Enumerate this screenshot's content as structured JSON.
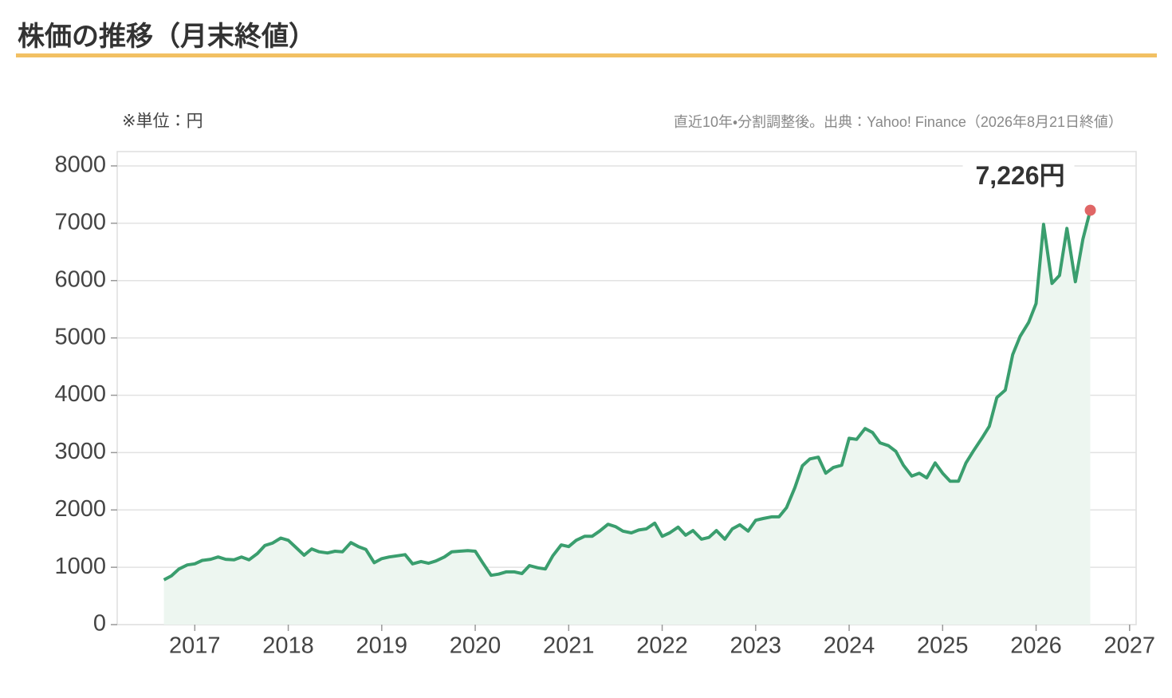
{
  "chart_data": {
    "type": "line",
    "title": "株価の推移（月末終値）",
    "unit_note": "※単位：円",
    "source": "直近10年・分割調整後。出典：Yahoo! Finance（2026年8月21日終値）",
    "annotation": "7,226円",
    "color": "#3a9e6e",
    "area_color": "#edf6f0",
    "marker_color": "#e06666",
    "grid": true,
    "xlim": [
      2016.17,
      2027.07
    ],
    "xticks": [
      2017,
      2018,
      2019,
      2020,
      2021,
      2022,
      2023,
      2024,
      2025,
      2026,
      2027
    ],
    "ylim": [
      0,
      8250
    ],
    "yticks": [
      0,
      1000,
      2000,
      3000,
      4000,
      5000,
      6000,
      7000,
      8000
    ],
    "x": [
      2016.67,
      2016.75,
      2016.83,
      2016.92,
      2017.0,
      2017.08,
      2017.17,
      2017.25,
      2017.33,
      2017.42,
      2017.5,
      2017.58,
      2017.67,
      2017.75,
      2017.83,
      2017.92,
      2018.0,
      2018.08,
      2018.17,
      2018.25,
      2018.33,
      2018.42,
      2018.5,
      2018.58,
      2018.67,
      2018.75,
      2018.83,
      2018.92,
      2019.0,
      2019.08,
      2019.17,
      2019.25,
      2019.33,
      2019.42,
      2019.5,
      2019.58,
      2019.67,
      2019.75,
      2019.83,
      2019.92,
      2020.0,
      2020.08,
      2020.17,
      2020.25,
      2020.33,
      2020.42,
      2020.5,
      2020.58,
      2020.67,
      2020.75,
      2020.83,
      2020.92,
      2021.0,
      2021.08,
      2021.17,
      2021.25,
      2021.33,
      2021.42,
      2021.5,
      2021.58,
      2021.67,
      2021.75,
      2021.83,
      2021.92,
      2022.0,
      2022.08,
      2022.17,
      2022.25,
      2022.33,
      2022.42,
      2022.5,
      2022.58,
      2022.67,
      2022.75,
      2022.83,
      2022.92,
      2023.0,
      2023.08,
      2023.17,
      2023.25,
      2023.33,
      2023.42,
      2023.5,
      2023.58,
      2023.67,
      2023.75,
      2023.83,
      2023.92,
      2024.0,
      2024.08,
      2024.17,
      2024.25,
      2024.33,
      2024.42,
      2024.5,
      2024.58,
      2024.67,
      2024.75,
      2024.83,
      2024.92,
      2025.0,
      2025.08,
      2025.17,
      2025.25,
      2025.33,
      2025.42,
      2025.5,
      2025.58,
      2025.67,
      2025.75,
      2025.83,
      2025.92,
      2026.0,
      2026.08,
      2026.17,
      2026.25,
      2026.33,
      2026.42,
      2026.5,
      2026.58
    ],
    "values": [
      780,
      850,
      970,
      1040,
      1060,
      1120,
      1140,
      1180,
      1140,
      1130,
      1180,
      1130,
      1240,
      1380,
      1420,
      1510,
      1470,
      1350,
      1210,
      1320,
      1270,
      1250,
      1280,
      1270,
      1430,
      1360,
      1310,
      1080,
      1150,
      1180,
      1200,
      1220,
      1060,
      1100,
      1070,
      1110,
      1180,
      1270,
      1280,
      1290,
      1280,
      1080,
      860,
      880,
      920,
      920,
      890,
      1030,
      990,
      970,
      1200,
      1390,
      1360,
      1470,
      1540,
      1540,
      1630,
      1750,
      1710,
      1630,
      1600,
      1650,
      1670,
      1770,
      1540,
      1600,
      1700,
      1560,
      1640,
      1490,
      1520,
      1640,
      1490,
      1670,
      1740,
      1630,
      1820,
      1850,
      1880,
      1880,
      2040,
      2390,
      2770,
      2890,
      2920,
      2640,
      2740,
      2780,
      3250,
      3230,
      3420,
      3350,
      3170,
      3120,
      3020,
      2780,
      2590,
      2640,
      2560,
      2820,
      2640,
      2500,
      2500,
      2820,
      3030,
      3250,
      3460,
      3960,
      4090,
      4710,
      5030,
      5270,
      5600,
      6980,
      5950,
      6090,
      6910,
      5980,
      6720,
      7226
    ]
  }
}
